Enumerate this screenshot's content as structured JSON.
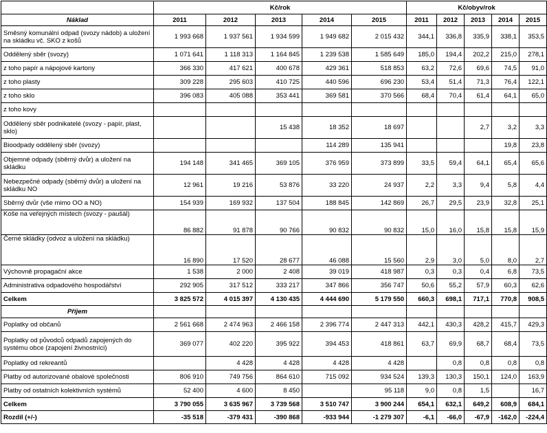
{
  "header": {
    "group_kc": "Kč/rok",
    "group_obyv": "Kč/obyv/rok",
    "naklad": "Náklad",
    "prijem": "Příjem",
    "years": [
      "2011",
      "2012",
      "2013",
      "2014",
      "2015"
    ]
  },
  "cost_rows": [
    {
      "label": "Směsný komunální odpad (svozy nádob) a uložení na skládku vč. SKO z košů",
      "kc": [
        "1 993 668",
        "1 937 561",
        "1 934 599",
        "1 949 682",
        "2 015 432"
      ],
      "obyv": [
        "344,1",
        "336,8",
        "335,9",
        "338,1",
        "353,5"
      ],
      "h": 32,
      "valign": "middle"
    },
    {
      "label": "Oddělený sběr (svozy)",
      "kc": [
        "1 071 641",
        "1 118 313",
        "1 164 845",
        "1 239 538",
        "1 585 649"
      ],
      "obyv": [
        "185,0",
        "194,4",
        "202,2",
        "215,0",
        "278,1"
      ],
      "h": 20,
      "valign": "middle"
    },
    {
      "label": "z toho papír a nápojové kartony",
      "kc": [
        "366 330",
        "417 621",
        "400 678",
        "429 361",
        "518 853"
      ],
      "obyv": [
        "63,2",
        "72,6",
        "69,6",
        "74,5",
        "91,0"
      ],
      "h": 20,
      "valign": "middle"
    },
    {
      "label": "z toho plasty",
      "kc": [
        "309 228",
        "295 603",
        "410 725",
        "440 596",
        "696 230"
      ],
      "obyv": [
        "53,4",
        "51,4",
        "71,3",
        "76,4",
        "122,1"
      ],
      "h": 20,
      "valign": "middle"
    },
    {
      "label": "z toho sklo",
      "kc": [
        "396 083",
        "405 088",
        "353 441",
        "369 581",
        "370 566"
      ],
      "obyv": [
        "68,4",
        "70,4",
        "61,4",
        "64,1",
        "65,0"
      ],
      "h": 20,
      "valign": "middle"
    },
    {
      "label": "z toho kovy",
      "kc": [
        "",
        "",
        "",
        "",
        ""
      ],
      "obyv": [
        "",
        "",
        "",
        "",
        ""
      ],
      "h": 20,
      "valign": "middle"
    },
    {
      "label": "Oddělený sběr podnikatelé (svozy - papír, plast, sklo)",
      "kc": [
        "",
        "",
        "15 438",
        "18 352",
        "18 697"
      ],
      "obyv": [
        "",
        "",
        "2,7",
        "3,2",
        "3,3"
      ],
      "h": 32,
      "valign": "middle"
    },
    {
      "label": "Bioodpady oddělený sběr (svozy)",
      "kc": [
        "",
        "",
        "",
        "114 289",
        "135 941"
      ],
      "obyv": [
        "",
        "",
        "",
        "19,8",
        "23,8"
      ],
      "h": 20,
      "valign": "middle"
    },
    {
      "label": "Objemné odpady (sběrný dvůr) a uložení na skládku",
      "kc": [
        "194 148",
        "341 465",
        "369 105",
        "376 959",
        "373 899"
      ],
      "obyv": [
        "33,5",
        "59,4",
        "64,1",
        "65,4",
        "65,6"
      ],
      "h": 32,
      "valign": "middle"
    },
    {
      "label": "Nebezpečné odpady (sběrný dvůr) a uložení na skládku NO",
      "kc": [
        "12 961",
        "19 216",
        "53 876",
        "33 220",
        "24 937"
      ],
      "obyv": [
        "2,2",
        "3,3",
        "9,4",
        "5,8",
        "4,4"
      ],
      "h": 32,
      "valign": "middle"
    },
    {
      "label": "Sběrný dvůr (vše mimo OO a NO)",
      "kc": [
        "154 939",
        "169 932",
        "137 504",
        "188 845",
        "142 869"
      ],
      "obyv": [
        "26,7",
        "29,5",
        "23,9",
        "32,8",
        "25,1"
      ],
      "h": 20,
      "valign": "middle"
    },
    {
      "label": "Koše na veřejných místech (svozy - paušál)",
      "kc": [
        "86 882",
        "91 878",
        "90 766",
        "90 832",
        "90 832"
      ],
      "obyv": [
        "15,0",
        "16,0",
        "15,8",
        "15,8",
        "15,9"
      ],
      "h": 36,
      "valign": "mixed"
    },
    {
      "label": "Černé skládky (odvoz a uložení na skládku)",
      "kc": [
        "16 890",
        "17 520",
        "28 677",
        "46 088",
        "15 560"
      ],
      "obyv": [
        "2,9",
        "3,0",
        "5,0",
        "8,0",
        "2,7"
      ],
      "h": 44,
      "valign": "mixed"
    },
    {
      "label": "Výchovně propagační akce",
      "kc": [
        "1 538",
        "2 000",
        "2 408",
        "39 019",
        "418 987"
      ],
      "obyv": [
        "0,3",
        "0,3",
        "0,4",
        "6,8",
        "73,5"
      ],
      "h": 20,
      "valign": "middle"
    },
    {
      "label": "Administrativa odpadového hospodářství",
      "kc": [
        "292 905",
        "317 512",
        "333 217",
        "347 866",
        "356 747"
      ],
      "obyv": [
        "50,6",
        "55,2",
        "57,9",
        "60,3",
        "62,6"
      ],
      "h": 20,
      "valign": "middle"
    }
  ],
  "cost_total": {
    "label": "Celkem",
    "kc": [
      "3 825 572",
      "4 015 397",
      "4 130 435",
      "4 444 690",
      "5 179 550"
    ],
    "obyv": [
      "660,3",
      "698,1",
      "717,1",
      "770,8",
      "908,5"
    ]
  },
  "income_rows": [
    {
      "label": "Poplatky od občanů",
      "kc": [
        "2 561 668",
        "2 474 963",
        "2 466 158",
        "2 396 774",
        "2 447 313"
      ],
      "obyv": [
        "442,1",
        "430,3",
        "428,2",
        "415,7",
        "429,3"
      ],
      "h": 20,
      "valign": "middle"
    },
    {
      "label": "Poplatky od původců odpadů zapojených do systému obce (zapojení živnostníci)",
      "kc": [
        "369 077",
        "402 220",
        "395 922",
        "394 453",
        "418 861"
      ],
      "obyv": [
        "63,7",
        "69,9",
        "68,7",
        "68,4",
        "73,5"
      ],
      "h": 36,
      "valign": "middle"
    },
    {
      "label": "Poplatky od rekreantů",
      "kc": [
        "",
        "4 428",
        "4 428",
        "4 428",
        "4 428"
      ],
      "obyv": [
        "",
        "0,8",
        "0,8",
        "0,8",
        "0,8"
      ],
      "h": 20,
      "valign": "middle"
    },
    {
      "label": "Platby od autorizované obalové společnosti",
      "kc": [
        "806 910",
        "749 756",
        "864 610",
        "715 092",
        "934 524"
      ],
      "obyv": [
        "139,3",
        "130,3",
        "150,1",
        "124,0",
        "163,9"
      ],
      "h": 20,
      "valign": "middle"
    },
    {
      "label": "Platby od ostatních kolektivních systémů",
      "kc": [
        "52 400",
        "4 600",
        "8 450",
        "",
        "95 118"
      ],
      "obyv": [
        "9,0",
        "0,8",
        "1,5",
        "",
        "16,7"
      ],
      "h": 20,
      "valign": "middle"
    }
  ],
  "income_total": {
    "label": "Celkem",
    "kc": [
      "3 790 055",
      "3 635 967",
      "3 739 568",
      "3 510 747",
      "3 900 244"
    ],
    "obyv": [
      "654,1",
      "632,1",
      "649,2",
      "608,9",
      "684,1"
    ]
  },
  "difference": {
    "label": "Rozdíl (+/-)",
    "kc": [
      "-35 518",
      "-379 431",
      "-390 868",
      "-933 944",
      "-1 279 307"
    ],
    "obyv": [
      "-6,1",
      "-66,0",
      "-67,9",
      "-162,0",
      "-224,4"
    ]
  }
}
